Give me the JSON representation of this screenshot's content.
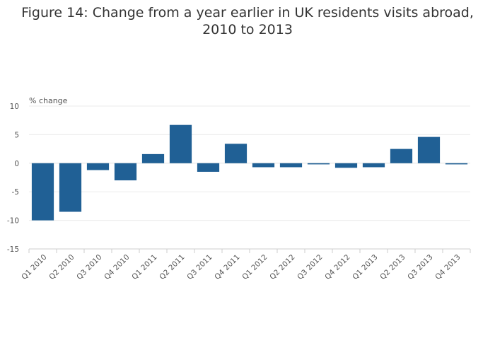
{
  "chart_data": {
    "type": "bar",
    "title": "Figure 14: Change from a year earlier in UK residents visits abroad, 2010 to 2013",
    "ylabel": "% change",
    "xlabel": "",
    "ylim": [
      -15,
      10
    ],
    "yticks": [
      10,
      5,
      0,
      -5,
      -10,
      -15
    ],
    "grid": true,
    "categories": [
      "Q1 2010",
      "Q2 2010",
      "Q3 2010",
      "Q4 2010",
      "Q1 2011",
      "Q2 2011",
      "Q3 2011",
      "Q4 2011",
      "Q1 2012",
      "Q2 2012",
      "Q3 2012",
      "Q4 2012",
      "Q1 2013",
      "Q2 2013",
      "Q3 2013",
      "Q4 2013"
    ],
    "values": [
      -10.0,
      -8.5,
      -1.2,
      -3.0,
      1.6,
      6.7,
      -1.5,
      3.4,
      -0.7,
      -0.7,
      -0.2,
      -0.8,
      -0.7,
      2.5,
      4.6,
      -0.2
    ],
    "bar_color": "#206095"
  }
}
